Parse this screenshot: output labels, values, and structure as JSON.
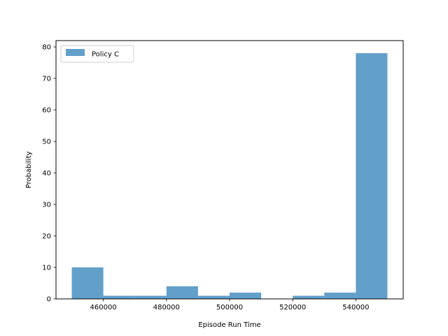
{
  "chart_data": {
    "type": "bar",
    "subtype": "histogram",
    "xlabel": "Episode Run Time",
    "ylabel": "Probability",
    "xlim": [
      445000,
      555000
    ],
    "ylim": [
      0,
      82
    ],
    "x_ticks": [
      460000,
      480000,
      500000,
      520000,
      540000
    ],
    "y_ticks": [
      0,
      10,
      20,
      30,
      40,
      50,
      60,
      70,
      80
    ],
    "legend_position": "upper-left",
    "series": [
      {
        "name": "Policy C",
        "color": "#1f77b4",
        "opacity": 0.7,
        "bins": [
          {
            "start": 450000,
            "end": 460000,
            "value": 10
          },
          {
            "start": 460000,
            "end": 470000,
            "value": 1
          },
          {
            "start": 470000,
            "end": 480000,
            "value": 1
          },
          {
            "start": 480000,
            "end": 490000,
            "value": 4
          },
          {
            "start": 490000,
            "end": 500000,
            "value": 1
          },
          {
            "start": 500000,
            "end": 510000,
            "value": 2
          },
          {
            "start": 510000,
            "end": 520000,
            "value": 0
          },
          {
            "start": 520000,
            "end": 530000,
            "value": 1
          },
          {
            "start": 530000,
            "end": 540000,
            "value": 2
          },
          {
            "start": 540000,
            "end": 550000,
            "value": 78
          }
        ]
      }
    ]
  }
}
